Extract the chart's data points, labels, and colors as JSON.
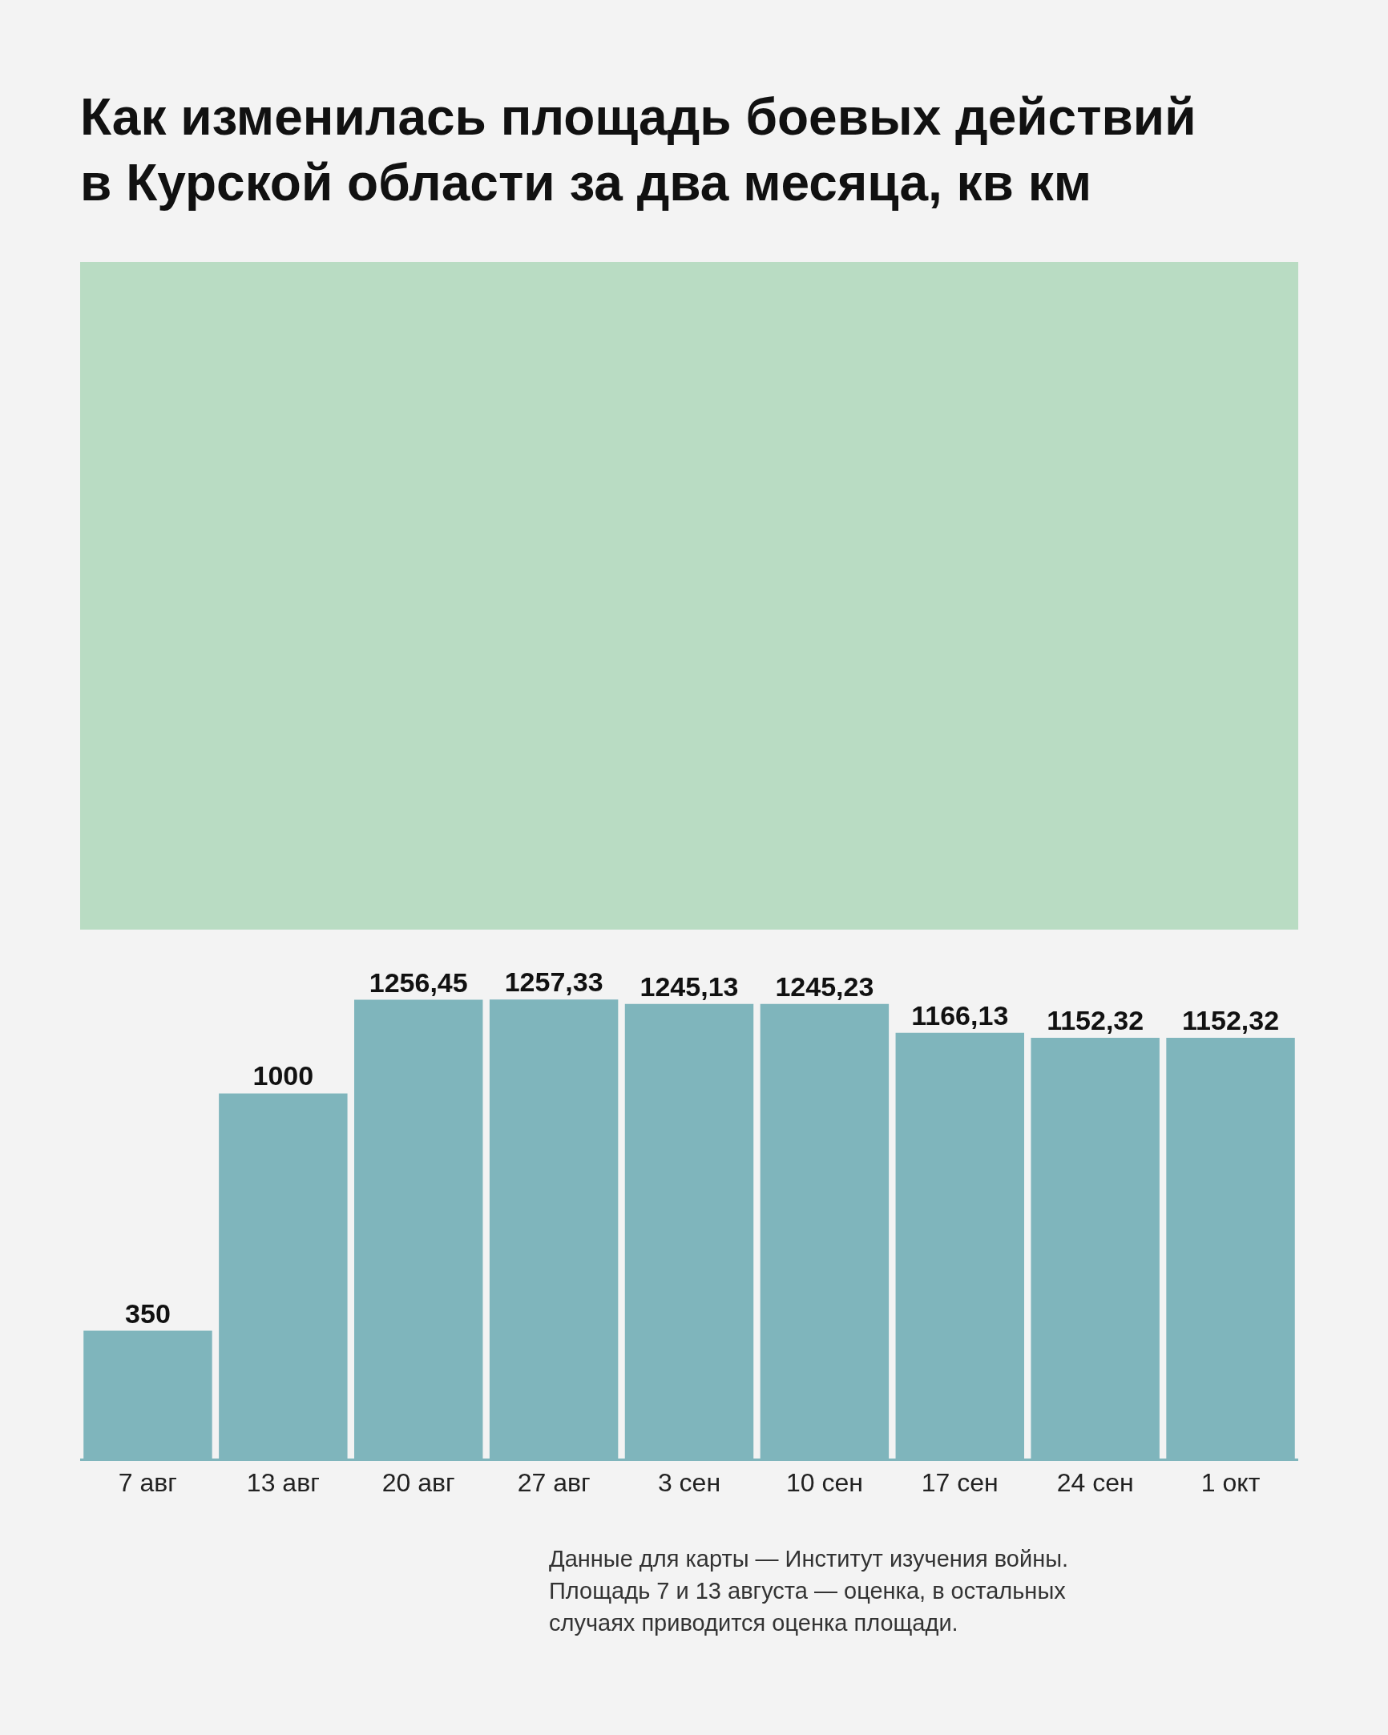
{
  "chart_data": {
    "type": "bar",
    "title": "Как изменилась площадь боевых действий\nв Курской области за два месяца, кв км",
    "categories": [
      "7 авг",
      "13 авг",
      "20 авг",
      "27 авг",
      "3 сен",
      "10 сен",
      "17 сен",
      "24 сен",
      "1 окт"
    ],
    "values": [
      350,
      1000,
      1256.45,
      1257.33,
      1245.13,
      1245.23,
      1166.13,
      1152.32,
      1152.32
    ],
    "value_labels": [
      "350",
      "1000",
      "1256,45",
      "1257,33",
      "1245,13",
      "1245,23",
      "1166,13",
      "1152,32",
      "1152,32"
    ],
    "color": "#7fb5bc",
    "annotations": [
      "Данные для карты — Институт изучения войны.\nПлощадь 7 и 13 августа — оценка, в остальных\nслучаях приводится оценка площади."
    ]
  }
}
